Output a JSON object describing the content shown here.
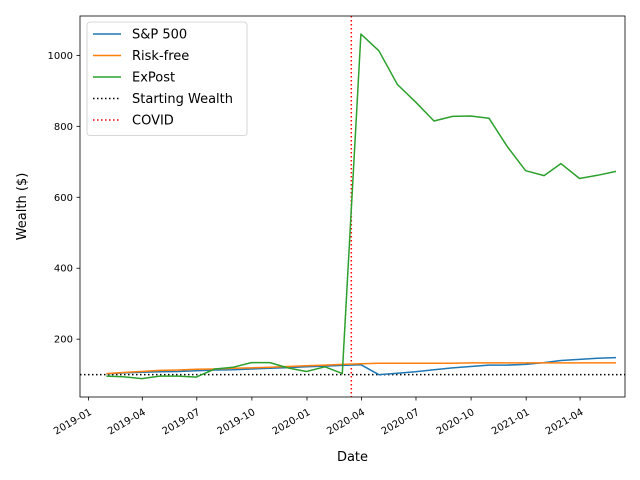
{
  "chart_data": {
    "type": "line",
    "title": "",
    "xlabel": "Date",
    "ylabel": "Wealth ($)",
    "xlim": [
      "2018-12-18",
      "2021-06-15"
    ],
    "ylim": [
      37,
      1111
    ],
    "grid": false,
    "legend_position": "top-left",
    "x_ticks": [
      "2019-01",
      "2019-04",
      "2019-07",
      "2019-10",
      "2020-01",
      "2020-04",
      "2020-07",
      "2020-10",
      "2021-01",
      "2021-04"
    ],
    "y_ticks": [
      200,
      400,
      600,
      800,
      1000
    ],
    "x": [
      "2019-01-31",
      "2019-02-28",
      "2019-03-31",
      "2019-04-30",
      "2019-05-31",
      "2019-06-30",
      "2019-07-31",
      "2019-08-31",
      "2019-09-30",
      "2019-10-31",
      "2019-11-30",
      "2019-12-31",
      "2020-01-31",
      "2020-02-29",
      "2020-03-31",
      "2020-04-30",
      "2020-05-31",
      "2020-06-30",
      "2020-07-31",
      "2020-08-31",
      "2020-09-30",
      "2020-10-31",
      "2020-11-30",
      "2020-12-31",
      "2021-01-31",
      "2021-02-28",
      "2021-03-31",
      "2021-04-30",
      "2021-05-31"
    ],
    "series": [
      {
        "name": "S&P 500",
        "color": "#1f77b4",
        "values": [
          102,
          105,
          107,
          108,
          109,
          111,
          113,
          114,
          116,
          118,
          120,
          122,
          124,
          126,
          128,
          100,
          104,
          108,
          114,
          119,
          123,
          127,
          127,
          129,
          134,
          140,
          143,
          146,
          148
        ]
      },
      {
        "name": "Risk-free",
        "color": "#ff7f0e",
        "values": [
          103,
          106,
          109,
          112,
          113,
          115,
          116,
          118,
          119,
          121,
          123,
          125,
          127,
          129,
          131,
          132,
          132,
          132,
          132,
          132,
          133,
          133,
          133,
          133,
          133,
          133,
          133,
          133,
          133
        ]
      },
      {
        "name": "ExPost",
        "color": "#2ca02c",
        "values": [
          96,
          94,
          89,
          96,
          96,
          93,
          116,
          121,
          134,
          134,
          119,
          109,
          122,
          103,
          1060,
          1013,
          918,
          869,
          815,
          828,
          829,
          823,
          744,
          675,
          661,
          695,
          653,
          662,
          673
        ]
      }
    ],
    "reference_lines": [
      {
        "name": "Starting Wealth",
        "orientation": "horizontal",
        "value": 100,
        "color": "#000000",
        "style": "dotted"
      },
      {
        "name": "COVID",
        "orientation": "vertical",
        "value": "2020-03-15",
        "color": "#ff0000",
        "style": "dotted"
      }
    ]
  }
}
